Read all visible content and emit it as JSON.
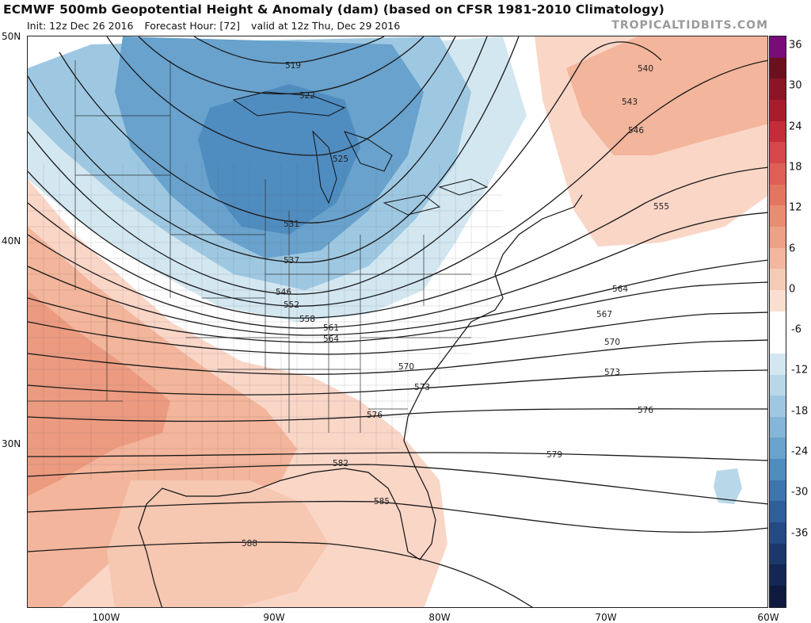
{
  "title": "ECMWF 500mb Geopotential Height & Anomaly (dam) (based on CFSR 1981-2010 Climatology)",
  "init": "Init: 12z Dec 26 2016",
  "forecast_hour": "Forecast Hour: [72]",
  "valid": "valid at 12z Thu, Dec 29 2016",
  "brand": "TROPICALTIDBITS.COM",
  "lat_labels": [
    "50N",
    "40N",
    "30N"
  ],
  "lon_labels": [
    "100W",
    "90W",
    "80W",
    "70W",
    "60W"
  ],
  "colorbar": {
    "labels": [
      "36",
      "30",
      "24",
      "18",
      "12",
      "6",
      "0",
      "-6",
      "-12",
      "-18",
      "-24",
      "-30",
      "-36"
    ],
    "colors": [
      "#7b0a7b",
      "#6e0f1e",
      "#8c1525",
      "#a81d2c",
      "#c42c38",
      "#d4474a",
      "#dd5f56",
      "#e3765f",
      "#e98c6f",
      "#eea184",
      "#f2b79c",
      "#f6cbb5",
      "#fadfd1",
      "#ffffff",
      "#ffffff",
      "#d3e7f1",
      "#b8d8ea",
      "#9ec8e2",
      "#83b6d8",
      "#68a2cd",
      "#4f8cc0",
      "#3c75b0",
      "#2e5f9c",
      "#234a85",
      "#1b376c",
      "#142654",
      "#0e1a40"
    ]
  },
  "contours": [
    "519",
    "522",
    "525",
    "531",
    "537",
    "540",
    "543",
    "546",
    "546",
    "552",
    "555",
    "558",
    "561",
    "564",
    "564",
    "567",
    "570",
    "570",
    "573",
    "573",
    "576",
    "576",
    "579",
    "582",
    "585",
    "588"
  ]
}
